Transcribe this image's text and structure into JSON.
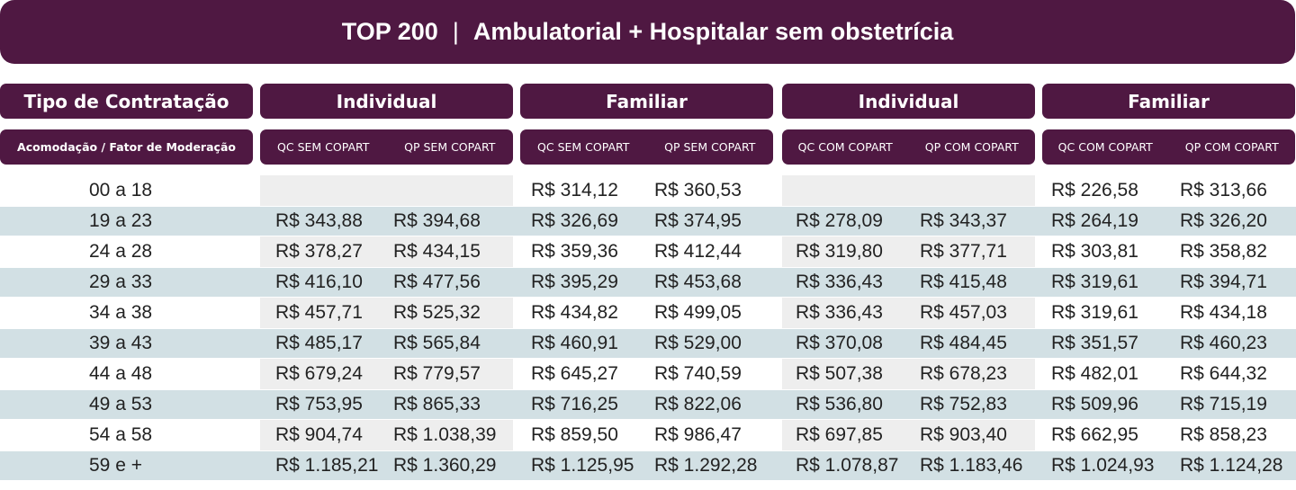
{
  "title": {
    "left": "TOP 200",
    "separator": "|",
    "right": "Ambulatorial + Hospitalar sem obstetrícia"
  },
  "headers": {
    "row_label": "Tipo de Contratação",
    "row_sublabel": "Acomodação / Fator de Moderação",
    "groups": [
      {
        "label": "Individual",
        "sub": [
          "QC SEM COPART",
          "QP SEM COPART"
        ]
      },
      {
        "label": "Familiar",
        "sub": [
          "QC SEM COPART",
          "QP SEM COPART"
        ]
      },
      {
        "label": "Individual",
        "sub": [
          "QC COM COPART",
          "QP COM COPART"
        ]
      },
      {
        "label": "Familiar",
        "sub": [
          "QC COM COPART",
          "QP COM COPART"
        ]
      }
    ]
  },
  "rows": [
    {
      "age": "00 a 18",
      "values": [
        "",
        "",
        "R$ 314,12",
        "R$ 360,53",
        "",
        "",
        "R$ 226,58",
        "R$ 313,66"
      ]
    },
    {
      "age": "19 a 23",
      "values": [
        "R$ 343,88",
        "R$ 394,68",
        "R$ 326,69",
        "R$ 374,95",
        "R$ 278,09",
        "R$ 343,37",
        "R$ 264,19",
        "R$ 326,20"
      ]
    },
    {
      "age": "24 a 28",
      "values": [
        "R$ 378,27",
        "R$ 434,15",
        "R$ 359,36",
        "R$ 412,44",
        "R$ 319,80",
        "R$ 377,71",
        "R$ 303,81",
        "R$ 358,82"
      ]
    },
    {
      "age": "29 a 33",
      "values": [
        "R$ 416,10",
        "R$ 477,56",
        "R$ 395,29",
        "R$ 453,68",
        "R$ 336,43",
        "R$ 415,48",
        "R$ 319,61",
        "R$ 394,71"
      ]
    },
    {
      "age": "34 a 38",
      "values": [
        "R$ 457,71",
        "R$ 525,32",
        "R$ 434,82",
        "R$ 499,05",
        "R$ 336,43",
        "R$ 457,03",
        "R$ 319,61",
        "R$ 434,18"
      ]
    },
    {
      "age": "39 a 43",
      "values": [
        "R$ 485,17",
        "R$ 565,84",
        "R$ 460,91",
        "R$ 529,00",
        "R$ 370,08",
        "R$ 484,45",
        "R$ 351,57",
        "R$ 460,23"
      ]
    },
    {
      "age": "44 a 48",
      "values": [
        "R$ 679,24",
        "R$ 779,57",
        "R$ 645,27",
        "R$ 740,59",
        "R$ 507,38",
        "R$ 678,23",
        "R$ 482,01",
        "R$ 644,32"
      ]
    },
    {
      "age": "49 a 53",
      "values": [
        "R$ 753,95",
        "R$ 865,33",
        "R$ 716,25",
        "R$ 822,06",
        "R$ 536,80",
        "R$ 752,83",
        "R$ 509,96",
        "R$ 715,19"
      ]
    },
    {
      "age": "54 a 58",
      "values": [
        "R$ 904,74",
        "R$ 1.038,39",
        "R$ 859,50",
        "R$ 986,47",
        "R$ 697,85",
        "R$ 903,40",
        "R$ 662,95",
        "R$ 858,23"
      ]
    },
    {
      "age": "59 e +",
      "values": [
        "R$ 1.185,21",
        "R$ 1.360,29",
        "R$ 1.125,95",
        "R$ 1.292,28",
        "R$ 1.078,87",
        "R$ 1.183,46",
        "R$ 1.024,93",
        "R$ 1.124,28"
      ]
    }
  ]
}
